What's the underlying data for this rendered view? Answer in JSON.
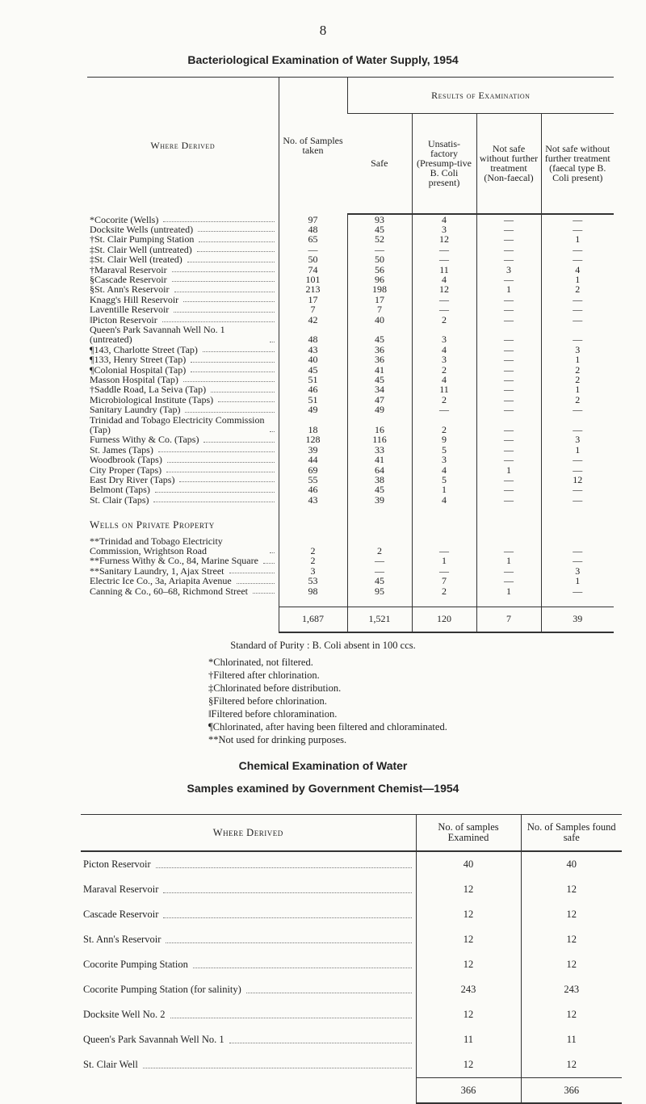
{
  "page_number": "8",
  "title": "Bacteriological Examination of Water Supply, 1954",
  "table1": {
    "headers": {
      "where": "Where Derived",
      "samples": "No. of Samples taken",
      "results": "Results of Examination",
      "sub": [
        "Safe",
        "Unsatis-factory (Presump-tive B. Coli present)",
        "Not safe without further treatment (Non-faecal)",
        "Not safe without further treatment (faecal type B. Coli present)"
      ]
    },
    "rows": [
      {
        "name": "*Cocorite (Wells)",
        "values": [
          97,
          93,
          4,
          "—",
          "—"
        ]
      },
      {
        "name": "Docksite Wells (untreated)",
        "values": [
          48,
          45,
          3,
          "—",
          "—"
        ]
      },
      {
        "name": "†St. Clair Pumping Station",
        "values": [
          65,
          52,
          12,
          "—",
          1
        ]
      },
      {
        "name": "‡St. Clair Well (untreated)",
        "values": [
          "—",
          "—",
          "—",
          "—",
          "—"
        ]
      },
      {
        "name": "‡St. Clair Well (treated)",
        "values": [
          50,
          50,
          "—",
          "—",
          "—"
        ]
      },
      {
        "name": "†Maraval Reservoir",
        "values": [
          74,
          56,
          11,
          3,
          4
        ]
      },
      {
        "name": "§Cascade Reservoir",
        "values": [
          101,
          96,
          4,
          "—",
          1
        ]
      },
      {
        "name": "§St. Ann's Reservoir",
        "values": [
          213,
          198,
          12,
          1,
          2
        ]
      },
      {
        "name": "Knagg's Hill Reservoir",
        "values": [
          17,
          17,
          "—",
          "—",
          "—"
        ]
      },
      {
        "name": "Laventille Reservoir",
        "values": [
          7,
          7,
          "—",
          "—",
          "—"
        ]
      },
      {
        "name": "‖Picton Reservoir",
        "values": [
          42,
          40,
          2,
          "—",
          "—"
        ]
      },
      {
        "name": "Queen's Park Savannah Well No. 1 (untreated)",
        "values": [
          48,
          45,
          3,
          "—",
          "—"
        ]
      },
      {
        "name": "¶143, Charlotte Street (Tap)",
        "values": [
          43,
          36,
          4,
          "—",
          3
        ]
      },
      {
        "name": "¶133, Henry Street (Tap)",
        "values": [
          40,
          36,
          3,
          "—",
          1
        ]
      },
      {
        "name": "¶Colonial Hospital (Tap)",
        "values": [
          45,
          41,
          2,
          "—",
          2
        ]
      },
      {
        "name": "Masson Hospital (Tap)",
        "values": [
          51,
          45,
          4,
          "—",
          2
        ]
      },
      {
        "name": "†Saddle Road, La Seiva (Tap)",
        "values": [
          46,
          34,
          11,
          "—",
          1
        ]
      },
      {
        "name": "Microbiological Institute (Taps)",
        "values": [
          51,
          47,
          2,
          "—",
          2
        ]
      },
      {
        "name": "Sanitary Laundry (Tap)",
        "values": [
          49,
          49,
          "—",
          "—",
          "—"
        ]
      },
      {
        "name": "Trinidad and Tobago Electricity Commission (Tap)",
        "values": [
          18,
          16,
          2,
          "—",
          "—"
        ]
      },
      {
        "name": "Furness Withy & Co. (Taps)",
        "values": [
          128,
          116,
          9,
          "—",
          3
        ]
      },
      {
        "name": "St. James (Taps)",
        "values": [
          39,
          33,
          5,
          "—",
          1
        ]
      },
      {
        "name": "Woodbrook (Taps)",
        "values": [
          44,
          41,
          3,
          "—",
          "—"
        ]
      },
      {
        "name": "City Proper (Taps)",
        "values": [
          69,
          64,
          4,
          1,
          "—"
        ]
      },
      {
        "name": "East Dry River (Taps)",
        "values": [
          55,
          38,
          5,
          "—",
          12
        ]
      },
      {
        "name": "Belmont (Taps)",
        "values": [
          46,
          45,
          1,
          "—",
          "—"
        ]
      },
      {
        "name": "St. Clair (Taps)",
        "values": [
          43,
          39,
          4,
          "—",
          "—"
        ]
      }
    ],
    "section": "Wells on Private Property",
    "private_rows": [
      {
        "name": "**Trinidad and Tobago Electricity Commission, Wrightson Road",
        "values": [
          2,
          2,
          "—",
          "—",
          "—"
        ]
      },
      {
        "name": "**Furness Withy & Co., 84, Marine Square",
        "values": [
          2,
          "—",
          1,
          1,
          "—"
        ]
      },
      {
        "name": "**Sanitary Laundry, 1, Ajax Street",
        "values": [
          3,
          "—",
          "—",
          "—",
          3
        ]
      },
      {
        "name": "Electric Ice Co., 3a, Ariapita Avenue",
        "values": [
          53,
          45,
          7,
          "—",
          1
        ]
      },
      {
        "name": "Canning & Co., 60–68, Richmond Street",
        "values": [
          98,
          95,
          2,
          1,
          "—"
        ]
      }
    ],
    "totals": [
      "1,687",
      "1,521",
      120,
      7,
      39
    ]
  },
  "standard": "Standard of Purity : B. Coli absent in 100 ccs.",
  "footnotes": [
    "*Chlorinated, not filtered.",
    "†Filtered after chlorination.",
    "‡Chlorinated before distribution.",
    "§Filtered before chlorination.",
    "‖Filtered before chloramination.",
    "¶Chlorinated, after having been filtered and chloraminated.",
    "**Not used for drinking purposes."
  ],
  "title2": "Chemical Examination of Water",
  "subtitle2": "Samples examined by Government Chemist—1954",
  "table2": {
    "headers": [
      "Where Derived",
      "No. of samples Examined",
      "No. of Samples found safe"
    ],
    "rows": [
      {
        "name": "Picton Reservoir",
        "values": [
          40,
          40
        ]
      },
      {
        "name": "Maraval Reservoir",
        "values": [
          12,
          12
        ]
      },
      {
        "name": "Cascade Reservoir",
        "values": [
          12,
          12
        ]
      },
      {
        "name": "St. Ann's Reservoir",
        "values": [
          12,
          12
        ]
      },
      {
        "name": "Cocorite Pumping Station",
        "values": [
          12,
          12
        ]
      },
      {
        "name": "Cocorite Pumping Station (for salinity)",
        "values": [
          243,
          243
        ]
      },
      {
        "name": "Docksite Well No. 2",
        "values": [
          12,
          12
        ]
      },
      {
        "name": "Queen's Park Savannah Well No. 1",
        "values": [
          11,
          11
        ]
      },
      {
        "name": "St. Clair Well",
        "values": [
          12,
          12
        ]
      }
    ],
    "totals": [
      366,
      366
    ]
  }
}
